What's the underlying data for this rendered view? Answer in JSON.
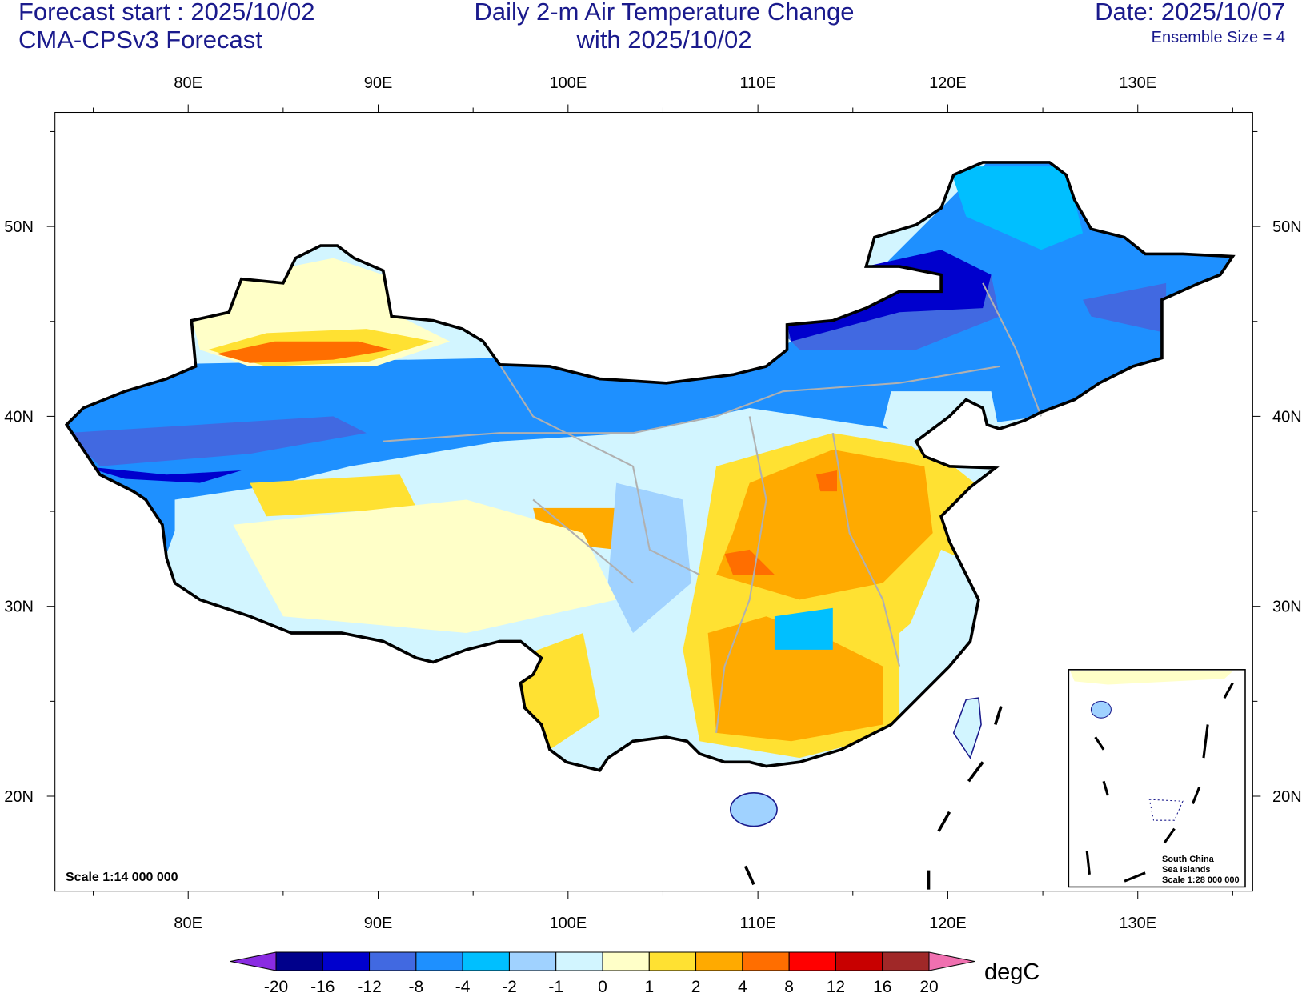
{
  "header": {
    "forecast_start": "Forecast start : 2025/10/02",
    "model": "CMA-CPSv3 Forecast",
    "title": [
      "Daily 2-m Air Temperature Change",
      "with 2025/10/02"
    ],
    "date": "Date: 2025/10/07",
    "ensemble": "Ensemble Size = 4"
  },
  "map": {
    "lon_labels": [
      "80E",
      "90E",
      "100E",
      "110E",
      "120E",
      "130E"
    ],
    "lat_labels": [
      "50N",
      "40N",
      "30N",
      "20N"
    ],
    "scale": "Scale 1:14 000 000",
    "inset": [
      "South China",
      "Sea Islands",
      "Scale 1:28 000 000"
    ]
  },
  "colorbar": {
    "labels": [
      "-20",
      "-16",
      "-12",
      "-8",
      "-4",
      "-2",
      "-1",
      "0",
      "1",
      "2",
      "4",
      "8",
      "12",
      "16",
      "20"
    ],
    "colors": [
      "#8a2be2",
      "#00008b",
      "#0000cd",
      "#4169e1",
      "#1e90ff",
      "#00bfff",
      "#a0d2ff",
      "#d2f5ff",
      "#ffffc8",
      "#ffe132",
      "#ffaa00",
      "#ff6e00",
      "#ff0000",
      "#c80000",
      "#a02828",
      "#f070b0"
    ],
    "unit": "degC"
  }
}
